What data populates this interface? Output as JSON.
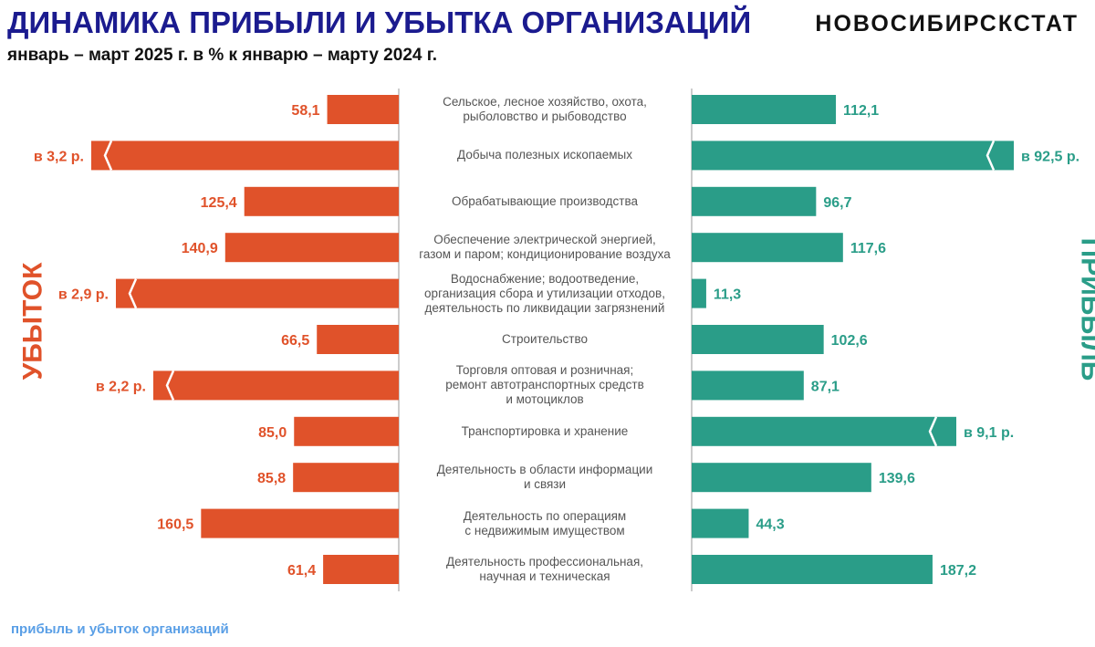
{
  "header": {
    "title": "ДИНАМИКА ПРИБЫЛИ И УБЫТКА ОРГАНИЗАЦИЙ",
    "subtitle": "январь – март 2025 г. в % к январю – марту 2024 г.",
    "brand": "НОВОСИБИРСКСТАТ"
  },
  "footer": "прибыль и убыток организаций",
  "chart_data": {
    "type": "bar",
    "orientation": "horizontal, diverging (butterfly)",
    "title": "ДИНАМИКА ПРИБЫЛИ И УБЫТКА ОРГАНИЗАЦИЙ",
    "subtitle": "январь – март 2025 г. в % к январю – марту 2024 г.",
    "unit": "% к январю – марту 2024 г.",
    "categories": [
      [
        "Сельское, лесное хозяйство, охота,",
        "рыболовство и  рыбоводство"
      ],
      [
        "Добыча полезных ископаемых"
      ],
      [
        "Обрабатывающие производства"
      ],
      [
        "Обеспечение электрической энергией,",
        "газом и паром; кондиционирование воздуха"
      ],
      [
        "Водоснабжение; водоотведение,",
        "организация сбора и утилизации отходов,",
        "деятельность по ликвидации загрязнений"
      ],
      [
        "Строительство"
      ],
      [
        "Торговля оптовая и розничная;",
        "ремонт автотранспортных средств",
        "и мотоциклов"
      ],
      [
        "Транспортировка и хранение"
      ],
      [
        "Деятельность в области информации",
        "и связи"
      ],
      [
        "Деятельность по операциям",
        "с недвижимым имуществом"
      ],
      [
        "Деятельность профессиональная,",
        "научная и техническая"
      ]
    ],
    "series": [
      {
        "name": "УБЫТОК",
        "side": "left",
        "color": "#e0522a",
        "values": [
          58.1,
          320,
          125.4,
          140.9,
          290,
          66.5,
          220,
          85.0,
          85.8,
          160.5,
          61.4
        ],
        "labels": [
          "58,1",
          "в 3,2 р.",
          "125,4",
          "140,9",
          "в 2,9 р.",
          "66,5",
          "в 2,2 р.",
          "85,0",
          "85,8",
          "160,5",
          "61,4"
        ],
        "broken": [
          false,
          true,
          false,
          false,
          true,
          false,
          true,
          false,
          false,
          false,
          false
        ]
      },
      {
        "name": "ПРИБЫЛЬ",
        "side": "right",
        "color": "#2a9d88",
        "values": [
          112.1,
          9250,
          96.7,
          117.6,
          11.3,
          102.6,
          87.1,
          910,
          139.6,
          44.3,
          187.2
        ],
        "labels": [
          "112,1",
          "в 92,5 р.",
          "96,7",
          "117,6",
          "11,3",
          "102,6",
          "87,1",
          "в 9,1 р.",
          "139,6",
          "44,3",
          "187,2"
        ],
        "broken": [
          false,
          true,
          false,
          false,
          false,
          false,
          false,
          true,
          false,
          false,
          false
        ]
      }
    ],
    "axis_color": "#bbbbbb",
    "grid": false,
    "legend": "none; side labels vertical (left: УБЫТОК, right: ПРИБЫЛЬ)"
  }
}
